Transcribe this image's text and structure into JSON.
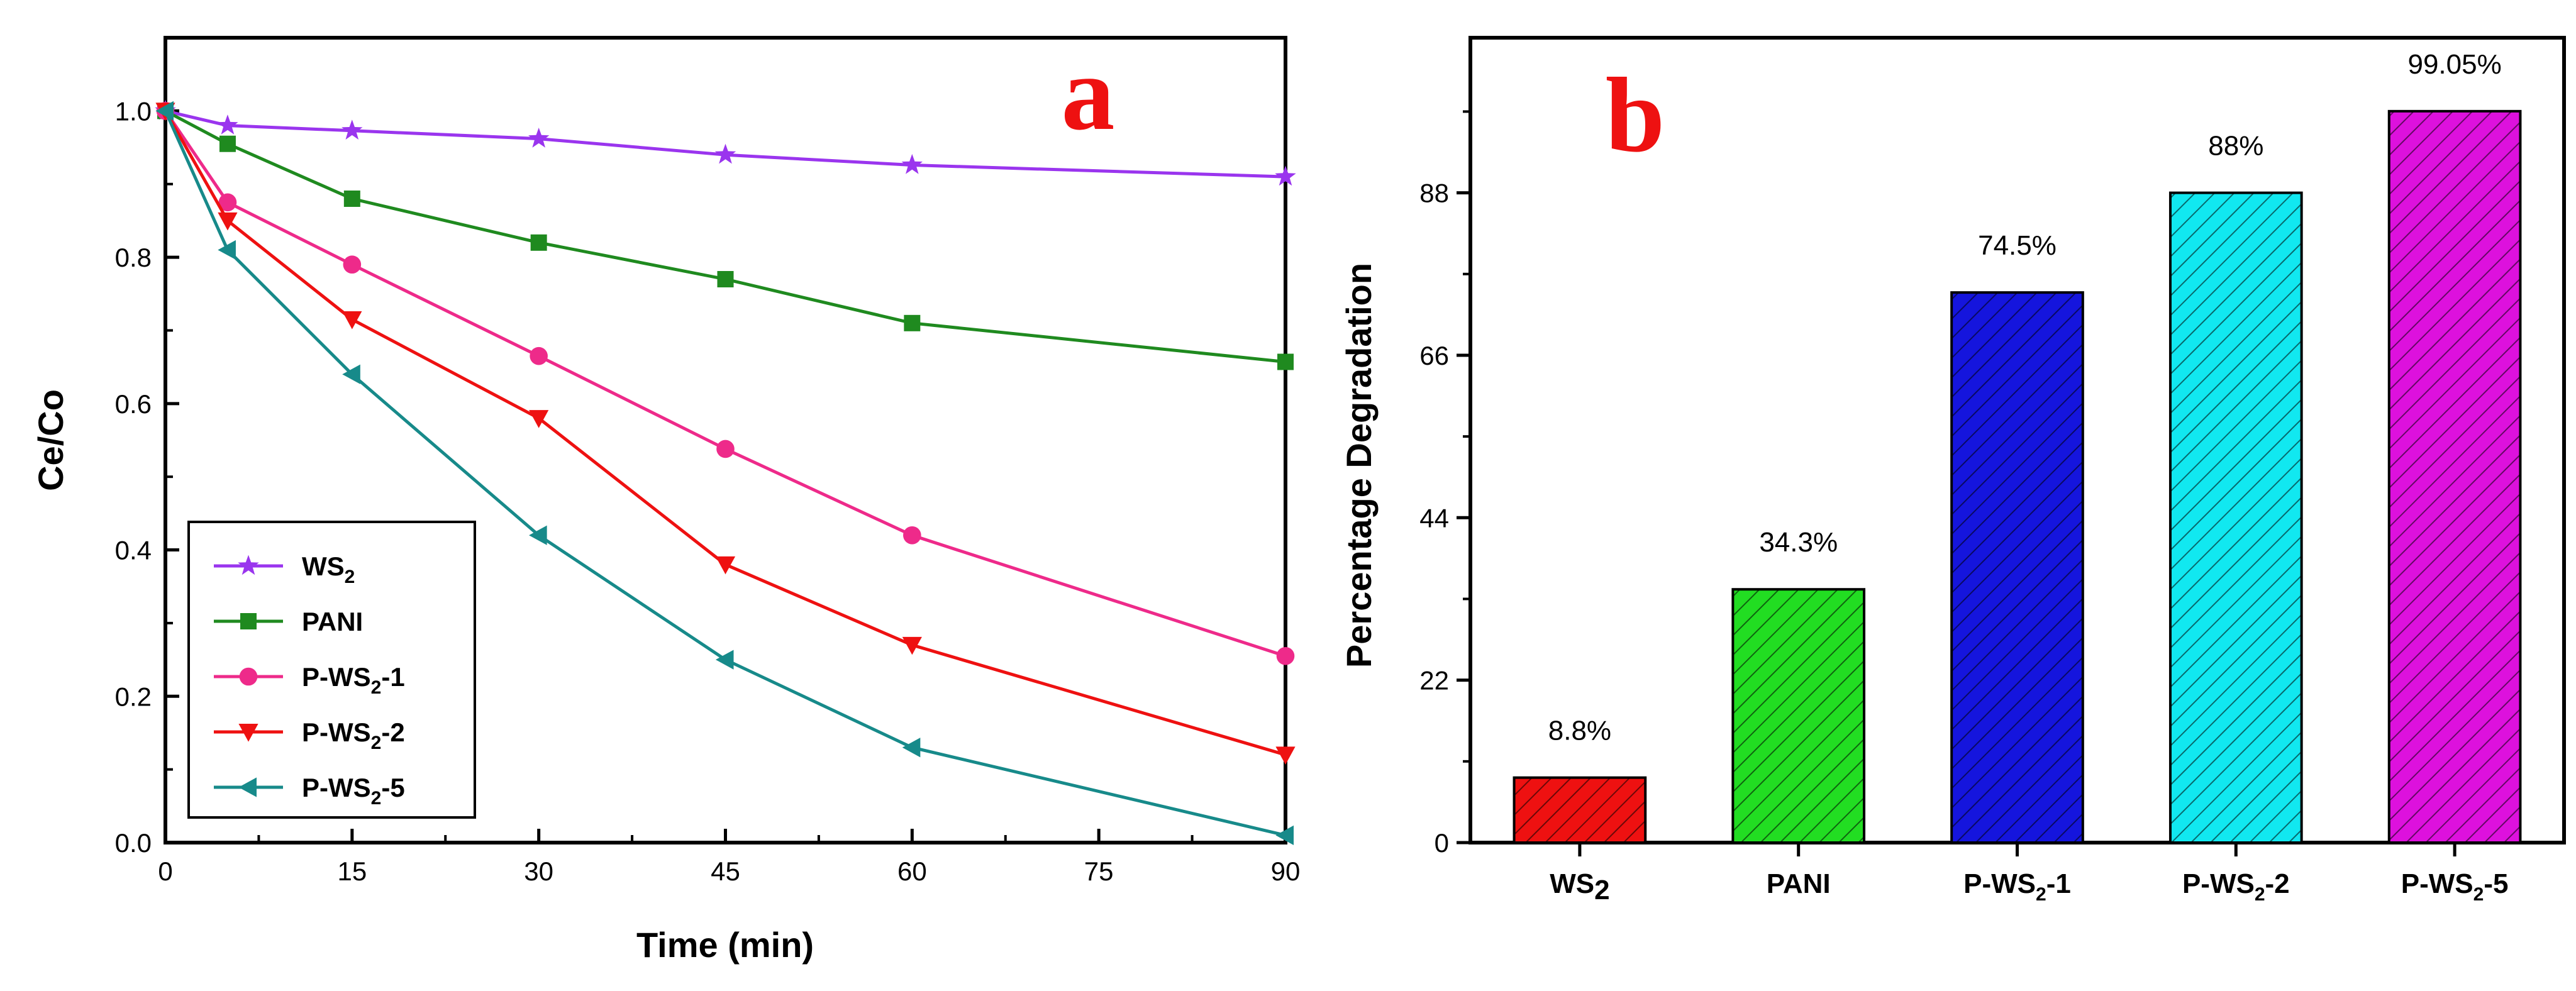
{
  "chart_data": [
    {
      "type": "line",
      "panel": "a",
      "xlabel": "Time (min)",
      "ylabel": "Ce/Co",
      "xlim": [
        0,
        90
      ],
      "ylim": [
        0,
        1.1
      ],
      "xticks": [
        0,
        15,
        30,
        45,
        60,
        75,
        90
      ],
      "yticks": [
        0.0,
        0.2,
        0.4,
        0.6,
        0.8,
        1.0
      ],
      "ytick_labels": [
        "0.0",
        "0.2",
        "0.4",
        "0.6",
        "0.8",
        "1.0"
      ],
      "x": [
        0,
        5,
        15,
        30,
        45,
        60,
        90
      ],
      "legend_position": "bottom-left",
      "series": [
        {
          "name": "WS",
          "sub": "2",
          "suffix": "",
          "color": "#9a35ee",
          "marker": "star",
          "values": [
            1.0,
            0.98,
            0.973,
            0.962,
            0.94,
            0.926,
            0.91
          ]
        },
        {
          "name": "PANI",
          "sub": "",
          "suffix": "",
          "color": "#1f8a1f",
          "marker": "square",
          "values": [
            1.0,
            0.955,
            0.88,
            0.82,
            0.77,
            0.71,
            0.657
          ]
        },
        {
          "name": "P-WS",
          "sub": "2",
          "suffix": "-1",
          "color": "#ee2a8a",
          "marker": "circle",
          "values": [
            1.0,
            0.875,
            0.79,
            0.665,
            0.538,
            0.42,
            0.255
          ]
        },
        {
          "name": "P-WS",
          "sub": "2",
          "suffix": "-2",
          "color": "#ee1111",
          "marker": "tri-down",
          "values": [
            1.0,
            0.85,
            0.715,
            0.58,
            0.38,
            0.27,
            0.12
          ]
        },
        {
          "name": "P-WS",
          "sub": "2",
          "suffix": "-5",
          "color": "#178a8a",
          "marker": "tri-left",
          "values": [
            1.0,
            0.81,
            0.64,
            0.42,
            0.25,
            0.13,
            0.01
          ]
        }
      ]
    },
    {
      "type": "bar",
      "panel": "b",
      "xlabel": "",
      "ylabel": "Percentage Degradation",
      "ylim": [
        0,
        109
      ],
      "yticks": [
        0,
        22,
        44,
        66,
        88
      ],
      "categories": [
        {
          "main": "WS",
          "sub": "2",
          "suffix": "",
          "sub_style": "large"
        },
        {
          "main": "PANI",
          "sub": "",
          "suffix": "",
          "sub_style": "small"
        },
        {
          "main": "P-WS",
          "sub": "2",
          "suffix": "-1",
          "sub_style": "small"
        },
        {
          "main": "P-WS",
          "sub": "2",
          "suffix": "-2",
          "sub_style": "small"
        },
        {
          "main": "P-WS",
          "sub": "2",
          "suffix": "-5",
          "sub_style": "small"
        }
      ],
      "values": [
        8.8,
        34.3,
        74.5,
        88,
        99.05
      ],
      "value_labels": [
        "8.8%",
        "34.3%",
        "74.5%",
        "88%",
        "99.05%"
      ],
      "colors": [
        "#ee1111",
        "#22dd22",
        "#1515dd",
        "#11e8f0",
        "#dd11dd"
      ]
    }
  ],
  "panels": {
    "a": "a",
    "b": "b"
  }
}
